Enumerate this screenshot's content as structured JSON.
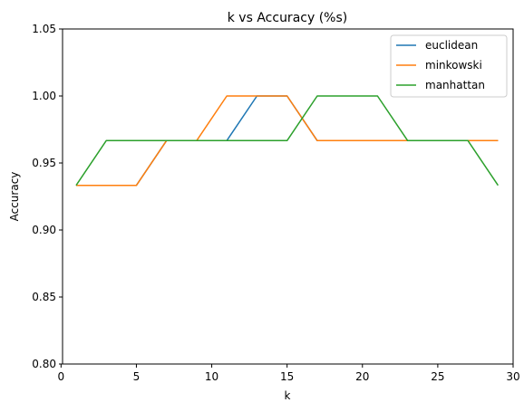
{
  "chart_data": {
    "type": "line",
    "title": "k vs Accuracy (%s)",
    "xlabel": "k",
    "ylabel": "Accuracy",
    "xlim": [
      0.1,
      30.0
    ],
    "ylim": [
      0.8,
      1.05
    ],
    "xticks": [
      0,
      5,
      10,
      15,
      20,
      25,
      30
    ],
    "yticks": [
      0.8,
      0.85,
      0.9,
      0.95,
      1.0,
      1.05
    ],
    "xtick_labels": [
      "0",
      "5",
      "10",
      "15",
      "20",
      "25",
      "30"
    ],
    "ytick_labels": [
      "0.80",
      "0.85",
      "0.90",
      "0.95",
      "1.00",
      "1.05"
    ],
    "grid": false,
    "legend_position": "top-right",
    "x": [
      1,
      3,
      5,
      7,
      9,
      11,
      13,
      15,
      17,
      19,
      21,
      23,
      25,
      27,
      29
    ],
    "series": [
      {
        "name": "euclidean",
        "color": "#1f77b4",
        "values": [
          0.9333,
          0.9333,
          0.9333,
          0.9667,
          0.9667,
          0.9667,
          1.0,
          1.0,
          0.9667,
          0.9667,
          0.9667,
          0.9667,
          0.9667,
          0.9667,
          0.9667
        ]
      },
      {
        "name": "minkowski",
        "color": "#ff7f0e",
        "values": [
          0.9333,
          0.9333,
          0.9333,
          0.9667,
          0.9667,
          1.0,
          1.0,
          1.0,
          0.9667,
          0.9667,
          0.9667,
          0.9667,
          0.9667,
          0.9667,
          0.9667
        ]
      },
      {
        "name": "manhattan",
        "color": "#2ca02c",
        "values": [
          0.9333,
          0.9667,
          0.9667,
          0.9667,
          0.9667,
          0.9667,
          0.9667,
          0.9667,
          1.0,
          1.0,
          1.0,
          0.9667,
          0.9667,
          0.9667,
          0.9333
        ]
      }
    ]
  }
}
